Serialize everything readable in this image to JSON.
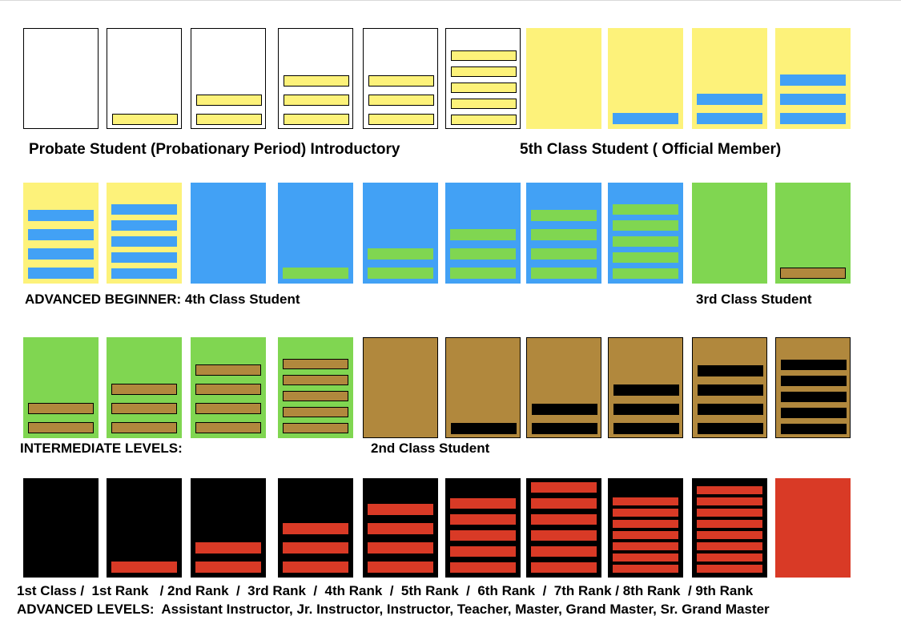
{
  "labels": {
    "probate": "Probate Student (Probationary Period) Introductory",
    "fifth_class": "5th Class Student ( Official Member)",
    "advanced_beginner": "ADVANCED BEGINNER: 4th Class Student",
    "third_class": "3rd Class Student",
    "intermediate": "INTERMEDIATE LEVELS:",
    "second_class": "2nd Class Student",
    "ranks": "1st Class /  1st Rank   / 2nd Rank  /  3rd Rank  /  4th Rank  /  5th Rank  /  6th Rank  /  7th Rank / 8th Rank  / 9th Rank",
    "advanced_levels": "ADVANCED LEVELS:  Assistant Instructor, Jr. Instructor, Instructor, Teacher, Master, Grand Master, Sr. Grand Master"
  },
  "colors": {
    "white": "#ffffff",
    "yellow": "#fdf27a",
    "blue": "#42a1f5",
    "green": "#80d651",
    "brown": "#b1883d",
    "black": "#000000",
    "red": "#d93a26"
  },
  "sash_rows": [
    {
      "name": "row-white-yellow",
      "cards": [
        {
          "base": "white",
          "stripe_color": "yellow",
          "stripes": 0
        },
        {
          "base": "white",
          "stripe_color": "yellow",
          "stripes": 1
        },
        {
          "base": "white",
          "stripe_color": "yellow",
          "stripes": 2
        },
        {
          "base": "white",
          "stripe_color": "yellow",
          "stripes": 3
        },
        {
          "base": "white",
          "stripe_color": "yellow",
          "stripes": 3
        },
        {
          "base": "white",
          "stripe_color": "yellow",
          "stripes": 5
        },
        {
          "base": "yellow",
          "stripe_color": "blue",
          "stripes": 0
        },
        {
          "base": "yellow",
          "stripe_color": "blue",
          "stripes": 1
        },
        {
          "base": "yellow",
          "stripe_color": "blue",
          "stripes": 2
        },
        {
          "base": "yellow",
          "stripe_color": "blue",
          "stripes": 3
        }
      ]
    },
    {
      "name": "row-yellow-blue-green",
      "cards": [
        {
          "base": "yellow",
          "stripe_color": "blue",
          "stripes": 4
        },
        {
          "base": "yellow",
          "stripe_color": "blue",
          "stripes": 5
        },
        {
          "base": "blue",
          "stripe_color": "green",
          "stripes": 0
        },
        {
          "base": "blue",
          "stripe_color": "green",
          "stripes": 1
        },
        {
          "base": "blue",
          "stripe_color": "green",
          "stripes": 2
        },
        {
          "base": "blue",
          "stripe_color": "green",
          "stripes": 3
        },
        {
          "base": "blue",
          "stripe_color": "green",
          "stripes": 4
        },
        {
          "base": "blue",
          "stripe_color": "green",
          "stripes": 5
        },
        {
          "base": "green",
          "stripe_color": "brown",
          "stripes": 0
        },
        {
          "base": "green",
          "stripe_color": "brown",
          "stripes": 1
        }
      ]
    },
    {
      "name": "row-green-brown-black",
      "cards": [
        {
          "base": "green",
          "stripe_color": "brown",
          "stripes": 2
        },
        {
          "base": "green",
          "stripe_color": "brown",
          "stripes": 3
        },
        {
          "base": "green",
          "stripe_color": "brown",
          "stripes": 4
        },
        {
          "base": "green",
          "stripe_color": "brown",
          "stripes": 5
        },
        {
          "base": "brown",
          "stripe_color": "black",
          "stripes": 0
        },
        {
          "base": "brown",
          "stripe_color": "black",
          "stripes": 1
        },
        {
          "base": "brown",
          "stripe_color": "black",
          "stripes": 2
        },
        {
          "base": "brown",
          "stripe_color": "black",
          "stripes": 3
        },
        {
          "base": "brown",
          "stripe_color": "black",
          "stripes": 4
        },
        {
          "base": "brown",
          "stripe_color": "black",
          "stripes": 5
        }
      ]
    },
    {
      "name": "row-black-red",
      "cards": [
        {
          "base": "black",
          "stripe_color": "red",
          "stripes": 0
        },
        {
          "base": "black",
          "stripe_color": "red",
          "stripes": 1
        },
        {
          "base": "black",
          "stripe_color": "red",
          "stripes": 2
        },
        {
          "base": "black",
          "stripe_color": "red",
          "stripes": 3
        },
        {
          "base": "black",
          "stripe_color": "red",
          "stripes": 4
        },
        {
          "base": "black",
          "stripe_color": "red",
          "stripes": 5
        },
        {
          "base": "black",
          "stripe_color": "red",
          "stripes": 6
        },
        {
          "base": "black",
          "stripe_color": "red",
          "stripes": 7
        },
        {
          "base": "black",
          "stripe_color": "red",
          "stripes": 8
        },
        {
          "base": "red",
          "stripe_color": "red",
          "stripes": 0
        }
      ]
    }
  ]
}
